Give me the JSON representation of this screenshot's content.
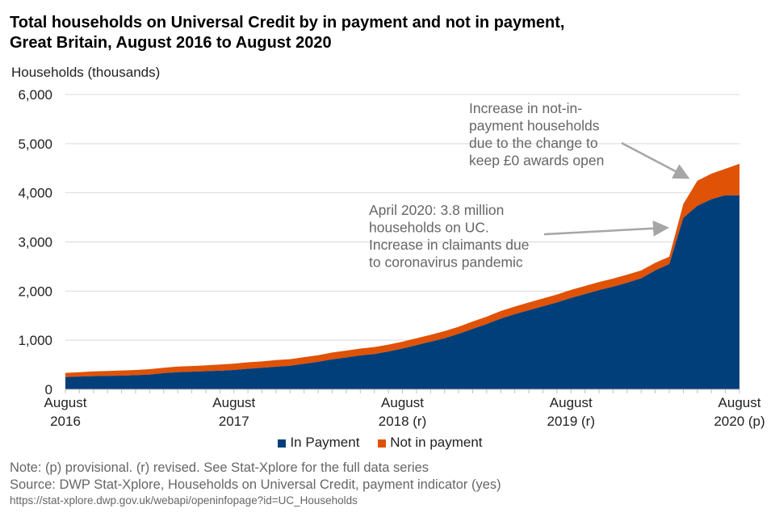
{
  "title_line1": "Total households on Universal Credit by in payment and not in payment,",
  "title_line2": "Great Britain, August 2016 to August 2020",
  "chart_data": {
    "type": "area",
    "stacked": true,
    "ylabel": "Households (thousands)",
    "ylim": [
      0,
      6000
    ],
    "yticks": [
      "0",
      "1,000",
      "2,000",
      "3,000",
      "4,000",
      "5,000",
      "6,000"
    ],
    "ytick_values": [
      0,
      1000,
      2000,
      3000,
      4000,
      5000,
      6000
    ],
    "grid": true,
    "legend_placement": "bottom",
    "x": [
      "Aug 2016",
      "Sep 2016",
      "Oct 2016",
      "Nov 2016",
      "Dec 2016",
      "Jan 2017",
      "Feb 2017",
      "Mar 2017",
      "Apr 2017",
      "May 2017",
      "Jun 2017",
      "Jul 2017",
      "Aug 2017",
      "Sep 2017",
      "Oct 2017",
      "Nov 2017",
      "Dec 2017",
      "Jan 2018",
      "Feb 2018",
      "Mar 2018",
      "Apr 2018",
      "May 2018",
      "Jun 2018",
      "Jul 2018",
      "Aug 2018",
      "Sep 2018",
      "Oct 2018",
      "Nov 2018",
      "Dec 2018",
      "Jan 2019",
      "Feb 2019",
      "Mar 2019",
      "Apr 2019",
      "May 2019",
      "Jun 2019",
      "Jul 2019",
      "Aug 2019",
      "Sep 2019",
      "Oct 2019",
      "Nov 2019",
      "Dec 2019",
      "Jan 2020",
      "Feb 2020",
      "Mar 2020",
      "Apr 2020",
      "May 2020",
      "Jun 2020",
      "Jul 2020",
      "Aug 2020"
    ],
    "xtick_labels": [
      {
        "index": 0,
        "line1": "August",
        "line2": "2016"
      },
      {
        "index": 12,
        "line1": "August",
        "line2": "2017"
      },
      {
        "index": 24,
        "line1": "August",
        "line2": "2018 (r)"
      },
      {
        "index": 36,
        "line1": "August",
        "line2": "2019 (r)"
      },
      {
        "index": 48,
        "line1": "August",
        "line2": "2020 (p)"
      }
    ],
    "series": [
      {
        "name": "In Payment",
        "color": "#003f7a",
        "values": [
          250,
          260,
          270,
          275,
          280,
          290,
          300,
          330,
          350,
          360,
          370,
          380,
          395,
          420,
          440,
          460,
          480,
          520,
          560,
          610,
          650,
          690,
          720,
          770,
          830,
          900,
          970,
          1040,
          1130,
          1230,
          1330,
          1440,
          1530,
          1610,
          1690,
          1770,
          1860,
          1940,
          2020,
          2090,
          2170,
          2260,
          2420,
          2550,
          3490,
          3735,
          3870,
          3950,
          3950
        ]
      },
      {
        "name": "Not in payment",
        "color": "#e05206",
        "values": [
          85,
          90,
          95,
          100,
          105,
          105,
          110,
          110,
          115,
          115,
          120,
          125,
          130,
          130,
          130,
          135,
          135,
          135,
          135,
          140,
          140,
          140,
          140,
          140,
          140,
          140,
          140,
          145,
          145,
          150,
          150,
          155,
          155,
          160,
          160,
          160,
          165,
          165,
          165,
          165,
          165,
          160,
          155,
          150,
          280,
          510,
          520,
          540,
          640
        ]
      }
    ],
    "annotations": [
      {
        "lines": [
          "Increase in not-in-",
          "payment households",
          "due to the change to",
          "keep £0 awards open"
        ],
        "points_to": "May 2020"
      },
      {
        "lines": [
          "April 2020: 3.8 million",
          "households on UC.",
          "Increase in claimants due",
          "to coronavirus pandemic"
        ],
        "points_to": "Mar 2020"
      }
    ]
  },
  "note": "Note: (p) provisional. (r) revised. See Stat-Xplore for the full data series",
  "source": "Source: DWP Stat-Xplore, Households on Universal Credit, payment indicator (yes)",
  "url": "https://stat-xplore.dwp.gov.uk/webapi/openinfopage?id=UC_Households"
}
